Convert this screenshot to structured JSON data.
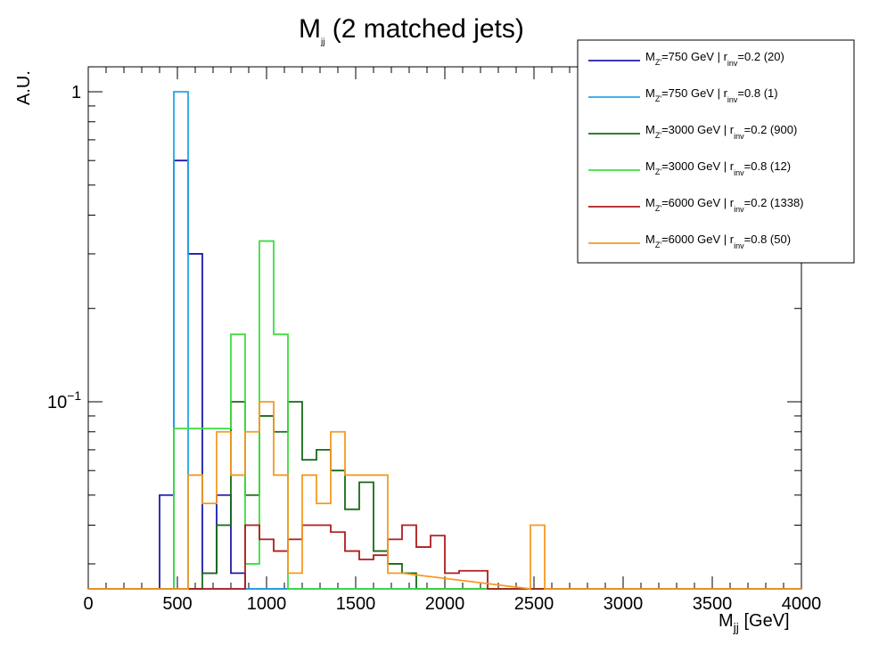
{
  "chart_data": {
    "type": "histogram-step",
    "title": "M",
    "title_sub": "jj",
    "title_rest": " (2 matched jets)",
    "xlabel": "M",
    "xlabel_sub": "jj",
    "xlabel_rest": " [GeV]",
    "ylabel": "A.U.",
    "xlim": [
      0,
      4000
    ],
    "ylim": [
      0.0275,
      1.25
    ],
    "yscale": "log",
    "xticks": [
      "0",
      "500",
      "1000",
      "1500",
      "2000",
      "2500",
      "3000",
      "3500",
      "4000"
    ],
    "ytick_labels": {
      "one": "1",
      "tenth_base": "10",
      "tenth_exp": "−1"
    },
    "legend_position": "top-right",
    "series": [
      {
        "label_mass": "750 GeV",
        "label_r": "=0.2 (20)",
        "color": "#1c1ca8",
        "bins": [
          [
            400,
            480,
            0.05
          ],
          [
            480,
            560,
            0.6
          ],
          [
            560,
            640,
            0.3
          ],
          [
            640,
            720,
            0.028
          ],
          [
            720,
            800,
            0.05
          ],
          [
            800,
            880,
            0.028
          ]
        ]
      },
      {
        "label_mass": "750 GeV",
        "label_r": "=0.8 (1)",
        "color": "#22a7e6",
        "bins": [
          [
            480,
            560,
            1.0
          ]
        ]
      },
      {
        "label_mass": "3000 GeV",
        "label_r": "=0.2 (900)",
        "color": "#146b14",
        "bins": [
          [
            640,
            720,
            0.028
          ],
          [
            720,
            800,
            0.04
          ],
          [
            800,
            880,
            0.1
          ],
          [
            880,
            960,
            0.05
          ],
          [
            960,
            1040,
            0.09
          ],
          [
            1040,
            1120,
            0.08
          ],
          [
            1120,
            1200,
            0.1
          ],
          [
            1200,
            1280,
            0.065
          ],
          [
            1280,
            1360,
            0.07
          ],
          [
            1360,
            1440,
            0.06
          ],
          [
            1440,
            1520,
            0.045
          ],
          [
            1520,
            1600,
            0.055
          ],
          [
            1600,
            1680,
            0.033
          ],
          [
            1680,
            1760,
            0.03
          ],
          [
            1760,
            1840,
            0.028
          ]
        ]
      },
      {
        "label_mass": "3000 GeV",
        "label_r": "=0.8 (12)",
        "color": "#3fdc3f",
        "bins": [
          [
            480,
            560,
            0.082
          ],
          [
            560,
            640,
            0.082
          ],
          [
            640,
            720,
            0.082
          ],
          [
            720,
            800,
            0.082
          ],
          [
            800,
            880,
            0.165
          ],
          [
            880,
            960,
            0.03
          ],
          [
            960,
            1040,
            0.33
          ],
          [
            1040,
            1120,
            0.165
          ]
        ]
      },
      {
        "label_mass": "6000 GeV",
        "label_r": "=0.2 (1338)",
        "color": "#b01c1c",
        "bins": [
          [
            880,
            960,
            0.04
          ],
          [
            960,
            1040,
            0.036
          ],
          [
            1040,
            1120,
            0.033
          ],
          [
            1120,
            1200,
            0.036
          ],
          [
            1200,
            1280,
            0.04
          ],
          [
            1280,
            1360,
            0.04
          ],
          [
            1360,
            1440,
            0.038
          ],
          [
            1440,
            1520,
            0.033
          ],
          [
            1520,
            1600,
            0.031
          ],
          [
            1600,
            1680,
            0.032
          ],
          [
            1680,
            1760,
            0.036
          ],
          [
            1760,
            1840,
            0.04
          ],
          [
            1840,
            1920,
            0.034
          ],
          [
            1920,
            2000,
            0.037
          ],
          [
            2000,
            2080,
            0.028
          ],
          [
            2080,
            2160,
            0.0285
          ],
          [
            2160,
            2240,
            0.0285
          ]
        ]
      },
      {
        "label_mass": "6000 GeV",
        "label_r": "=0.8 (50)",
        "color": "#f59a22",
        "bins": [
          [
            560,
            640,
            0.058
          ],
          [
            640,
            720,
            0.047
          ],
          [
            720,
            800,
            0.08
          ],
          [
            800,
            880,
            0.058
          ],
          [
            880,
            960,
            0.08
          ],
          [
            960,
            1040,
            0.1
          ],
          [
            1040,
            1120,
            0.058
          ],
          [
            1120,
            1200,
            0.028
          ],
          [
            1200,
            1280,
            0.058
          ],
          [
            1280,
            1360,
            0.047
          ],
          [
            1360,
            1440,
            0.08
          ],
          [
            1440,
            1520,
            0.058
          ],
          [
            1520,
            1600,
            0.058
          ],
          [
            1600,
            1680,
            0.058
          ],
          [
            1680,
            1760,
            0.028
          ],
          [
            2480,
            2560,
            0.04
          ]
        ]
      }
    ]
  },
  "legend_prefix": "M",
  "legend_sub_z": "Z'",
  "legend_sep": "=",
  "legend_r": " | r",
  "legend_inv": "inv"
}
